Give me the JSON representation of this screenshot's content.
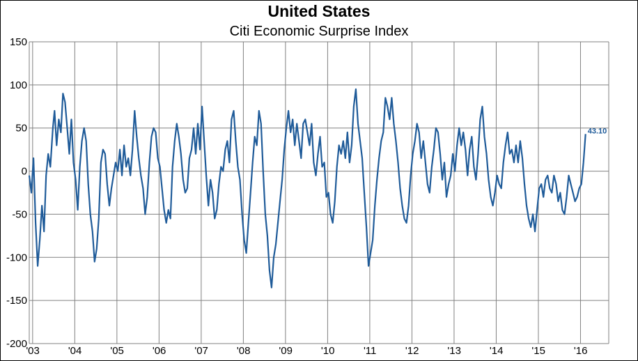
{
  "chart_data": {
    "type": "line",
    "title": "United States",
    "subtitle": "Citi Economic Surprise Index",
    "xlabel": "",
    "ylabel": "",
    "ylim": [
      -200,
      150
    ],
    "y_ticks": [
      150,
      100,
      50,
      0,
      -50,
      -100,
      -150,
      -200
    ],
    "x_ticks": [
      "'03",
      "'04",
      "'05",
      "'06",
      "'07",
      "'08",
      "'09",
      "'10",
      "'11",
      "'12",
      "'13",
      "'14",
      "'15",
      "'16"
    ],
    "xlim": [
      2002.92,
      2016.67
    ],
    "grid": true,
    "line_color": "#1f5b99",
    "end_label": "43.10",
    "series": [
      {
        "points": [
          [
            2002.92,
            -5
          ],
          [
            2002.97,
            -25
          ],
          [
            2003.02,
            15
          ],
          [
            2003.07,
            -60
          ],
          [
            2003.12,
            -110
          ],
          [
            2003.17,
            -80
          ],
          [
            2003.22,
            -40
          ],
          [
            2003.27,
            -70
          ],
          [
            2003.32,
            -5
          ],
          [
            2003.37,
            20
          ],
          [
            2003.42,
            5
          ],
          [
            2003.48,
            50
          ],
          [
            2003.52,
            70
          ],
          [
            2003.57,
            30
          ],
          [
            2003.62,
            60
          ],
          [
            2003.67,
            45
          ],
          [
            2003.72,
            90
          ],
          [
            2003.77,
            80
          ],
          [
            2003.82,
            50
          ],
          [
            2003.87,
            20
          ],
          [
            2003.92,
            60
          ],
          [
            2003.97,
            10
          ],
          [
            2004.02,
            -10
          ],
          [
            2004.07,
            -45
          ],
          [
            2004.12,
            5
          ],
          [
            2004.17,
            35
          ],
          [
            2004.22,
            50
          ],
          [
            2004.27,
            35
          ],
          [
            2004.32,
            -15
          ],
          [
            2004.37,
            -50
          ],
          [
            2004.42,
            -70
          ],
          [
            2004.47,
            -105
          ],
          [
            2004.52,
            -90
          ],
          [
            2004.57,
            -55
          ],
          [
            2004.62,
            10
          ],
          [
            2004.67,
            25
          ],
          [
            2004.72,
            20
          ],
          [
            2004.77,
            -15
          ],
          [
            2004.82,
            -40
          ],
          [
            2004.87,
            -20
          ],
          [
            2004.92,
            -5
          ],
          [
            2004.97,
            10
          ],
          [
            2005.02,
            0
          ],
          [
            2005.07,
            25
          ],
          [
            2005.12,
            -5
          ],
          [
            2005.17,
            30
          ],
          [
            2005.22,
            5
          ],
          [
            2005.27,
            15
          ],
          [
            2005.32,
            -5
          ],
          [
            2005.37,
            25
          ],
          [
            2005.42,
            70
          ],
          [
            2005.47,
            40
          ],
          [
            2005.52,
            15
          ],
          [
            2005.57,
            -5
          ],
          [
            2005.62,
            -20
          ],
          [
            2005.67,
            -50
          ],
          [
            2005.72,
            -30
          ],
          [
            2005.77,
            10
          ],
          [
            2005.82,
            40
          ],
          [
            2005.87,
            50
          ],
          [
            2005.92,
            45
          ],
          [
            2005.97,
            15
          ],
          [
            2006.02,
            5
          ],
          [
            2006.07,
            -20
          ],
          [
            2006.12,
            -45
          ],
          [
            2006.17,
            -60
          ],
          [
            2006.22,
            -45
          ],
          [
            2006.27,
            -55
          ],
          [
            2006.32,
            5
          ],
          [
            2006.37,
            35
          ],
          [
            2006.42,
            55
          ],
          [
            2006.47,
            40
          ],
          [
            2006.52,
            20
          ],
          [
            2006.57,
            -10
          ],
          [
            2006.62,
            -25
          ],
          [
            2006.67,
            -20
          ],
          [
            2006.72,
            15
          ],
          [
            2006.77,
            25
          ],
          [
            2006.82,
            50
          ],
          [
            2006.87,
            20
          ],
          [
            2006.92,
            55
          ],
          [
            2006.97,
            25
          ],
          [
            2007.02,
            75
          ],
          [
            2007.07,
            35
          ],
          [
            2007.12,
            -5
          ],
          [
            2007.17,
            -40
          ],
          [
            2007.22,
            -10
          ],
          [
            2007.27,
            -25
          ],
          [
            2007.32,
            -55
          ],
          [
            2007.37,
            -45
          ],
          [
            2007.42,
            -15
          ],
          [
            2007.47,
            5
          ],
          [
            2007.52,
            0
          ],
          [
            2007.57,
            25
          ],
          [
            2007.62,
            35
          ],
          [
            2007.67,
            10
          ],
          [
            2007.72,
            60
          ],
          [
            2007.77,
            70
          ],
          [
            2007.82,
            35
          ],
          [
            2007.87,
            5
          ],
          [
            2007.92,
            -10
          ],
          [
            2007.97,
            -50
          ],
          [
            2008.02,
            -80
          ],
          [
            2008.07,
            -95
          ],
          [
            2008.12,
            -60
          ],
          [
            2008.17,
            -25
          ],
          [
            2008.22,
            10
          ],
          [
            2008.27,
            40
          ],
          [
            2008.32,
            30
          ],
          [
            2008.37,
            70
          ],
          [
            2008.42,
            55
          ],
          [
            2008.47,
            0
          ],
          [
            2008.52,
            -50
          ],
          [
            2008.57,
            -75
          ],
          [
            2008.62,
            -115
          ],
          [
            2008.67,
            -135
          ],
          [
            2008.72,
            -100
          ],
          [
            2008.77,
            -85
          ],
          [
            2008.82,
            -60
          ],
          [
            2008.87,
            -35
          ],
          [
            2008.92,
            -10
          ],
          [
            2008.97,
            25
          ],
          [
            2009.02,
            50
          ],
          [
            2009.07,
            70
          ],
          [
            2009.12,
            45
          ],
          [
            2009.17,
            60
          ],
          [
            2009.22,
            30
          ],
          [
            2009.27,
            55
          ],
          [
            2009.32,
            35
          ],
          [
            2009.37,
            15
          ],
          [
            2009.42,
            55
          ],
          [
            2009.47,
            60
          ],
          [
            2009.52,
            45
          ],
          [
            2009.57,
            30
          ],
          [
            2009.62,
            55
          ],
          [
            2009.67,
            10
          ],
          [
            2009.72,
            -5
          ],
          [
            2009.77,
            20
          ],
          [
            2009.82,
            40
          ],
          [
            2009.87,
            5
          ],
          [
            2009.92,
            10
          ],
          [
            2009.97,
            -30
          ],
          [
            2010.02,
            -25
          ],
          [
            2010.07,
            -50
          ],
          [
            2010.12,
            -60
          ],
          [
            2010.17,
            -35
          ],
          [
            2010.22,
            5
          ],
          [
            2010.27,
            30
          ],
          [
            2010.32,
            20
          ],
          [
            2010.37,
            35
          ],
          [
            2010.42,
            15
          ],
          [
            2010.47,
            45
          ],
          [
            2010.52,
            10
          ],
          [
            2010.57,
            30
          ],
          [
            2010.62,
            75
          ],
          [
            2010.67,
            95
          ],
          [
            2010.72,
            55
          ],
          [
            2010.77,
            35
          ],
          [
            2010.82,
            15
          ],
          [
            2010.87,
            -25
          ],
          [
            2010.92,
            -65
          ],
          [
            2010.97,
            -110
          ],
          [
            2011.02,
            -95
          ],
          [
            2011.07,
            -80
          ],
          [
            2011.12,
            -40
          ],
          [
            2011.17,
            -10
          ],
          [
            2011.22,
            15
          ],
          [
            2011.27,
            35
          ],
          [
            2011.32,
            45
          ],
          [
            2011.37,
            85
          ],
          [
            2011.42,
            75
          ],
          [
            2011.47,
            60
          ],
          [
            2011.52,
            85
          ],
          [
            2011.57,
            55
          ],
          [
            2011.62,
            35
          ],
          [
            2011.67,
            10
          ],
          [
            2011.72,
            -20
          ],
          [
            2011.77,
            -40
          ],
          [
            2011.82,
            -55
          ],
          [
            2011.87,
            -60
          ],
          [
            2011.92,
            -40
          ],
          [
            2011.97,
            -5
          ],
          [
            2012.02,
            20
          ],
          [
            2012.07,
            35
          ],
          [
            2012.12,
            55
          ],
          [
            2012.17,
            45
          ],
          [
            2012.22,
            15
          ],
          [
            2012.27,
            35
          ],
          [
            2012.32,
            10
          ],
          [
            2012.37,
            -15
          ],
          [
            2012.42,
            -25
          ],
          [
            2012.47,
            5
          ],
          [
            2012.52,
            25
          ],
          [
            2012.57,
            50
          ],
          [
            2012.62,
            45
          ],
          [
            2012.67,
            20
          ],
          [
            2012.72,
            -10
          ],
          [
            2012.77,
            10
          ],
          [
            2012.82,
            -30
          ],
          [
            2012.87,
            -15
          ],
          [
            2012.92,
            -5
          ],
          [
            2012.97,
            20
          ],
          [
            2013.02,
            0
          ],
          [
            2013.07,
            30
          ],
          [
            2013.12,
            50
          ],
          [
            2013.17,
            30
          ],
          [
            2013.22,
            45
          ],
          [
            2013.27,
            25
          ],
          [
            2013.32,
            -5
          ],
          [
            2013.37,
            25
          ],
          [
            2013.42,
            40
          ],
          [
            2013.47,
            5
          ],
          [
            2013.52,
            -10
          ],
          [
            2013.57,
            20
          ],
          [
            2013.62,
            60
          ],
          [
            2013.67,
            75
          ],
          [
            2013.72,
            40
          ],
          [
            2013.77,
            20
          ],
          [
            2013.82,
            -10
          ],
          [
            2013.87,
            -30
          ],
          [
            2013.92,
            -40
          ],
          [
            2013.97,
            -25
          ],
          [
            2014.02,
            -5
          ],
          [
            2014.07,
            -15
          ],
          [
            2014.12,
            -20
          ],
          [
            2014.17,
            10
          ],
          [
            2014.22,
            30
          ],
          [
            2014.27,
            45
          ],
          [
            2014.32,
            20
          ],
          [
            2014.37,
            25
          ],
          [
            2014.42,
            10
          ],
          [
            2014.47,
            30
          ],
          [
            2014.52,
            10
          ],
          [
            2014.57,
            35
          ],
          [
            2014.62,
            15
          ],
          [
            2014.67,
            -15
          ],
          [
            2014.72,
            -40
          ],
          [
            2014.77,
            -55
          ],
          [
            2014.82,
            -65
          ],
          [
            2014.87,
            -50
          ],
          [
            2014.92,
            -70
          ],
          [
            2014.97,
            -45
          ],
          [
            2015.02,
            -20
          ],
          [
            2015.07,
            -15
          ],
          [
            2015.12,
            -30
          ],
          [
            2015.17,
            -10
          ],
          [
            2015.22,
            -5
          ],
          [
            2015.27,
            -20
          ],
          [
            2015.32,
            -25
          ],
          [
            2015.37,
            -5
          ],
          [
            2015.42,
            -15
          ],
          [
            2015.47,
            -35
          ],
          [
            2015.52,
            -25
          ],
          [
            2015.57,
            -45
          ],
          [
            2015.62,
            -50
          ],
          [
            2015.67,
            -30
          ],
          [
            2015.72,
            -5
          ],
          [
            2015.77,
            -15
          ],
          [
            2015.82,
            -25
          ],
          [
            2015.87,
            -35
          ],
          [
            2015.92,
            -30
          ],
          [
            2015.97,
            -20
          ],
          [
            2016.02,
            -15
          ],
          [
            2016.07,
            10
          ],
          [
            2016.12,
            43.1
          ]
        ]
      }
    ]
  }
}
